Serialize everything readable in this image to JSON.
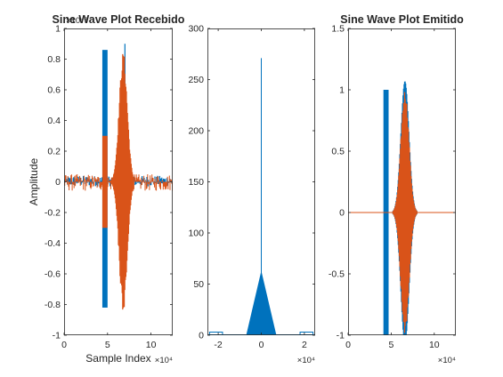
{
  "figure": {
    "colors": {
      "blue": "#0072BD",
      "orange": "#D95319",
      "axis": "#262626",
      "background": "#FFFFFF"
    }
  },
  "chart_data": [
    {
      "type": "line",
      "title": "Sine Wave Plot Recebido",
      "xlabel": "Sample Index",
      "ylabel": "Amplitude",
      "xlim": [
        0,
        125000
      ],
      "ylim": [
        -0.001,
        0.001
      ],
      "x_exponent_label": "×10⁴",
      "y_exponent_label": "×10⁻³",
      "xticks": [
        0,
        50000,
        100000
      ],
      "xtick_labels": [
        "0",
        "5",
        "10"
      ],
      "yticks": [
        -0.001,
        -0.0008,
        -0.0006,
        -0.0004,
        -0.0002,
        0,
        0.0002,
        0.0004,
        0.0006,
        0.0008,
        0.001
      ],
      "ytick_labels": [
        "-1",
        "-0.8",
        "-0.6",
        "-0.4",
        "-0.2",
        "0",
        "0.2",
        "0.4",
        "0.6",
        "0.8",
        "1"
      ],
      "grid": false,
      "series": [
        {
          "color": "#0072BD",
          "noise_band": [
            -3e-05,
            4e-05
          ],
          "burst_x": [
            44000,
            50000
          ],
          "burst_y": [
            -0.00082,
            0.00086
          ],
          "spike": [
            {
              "x": 70000,
              "y": 0.0009
            }
          ]
        },
        {
          "color": "#D95319",
          "noise_band": [
            -6e-05,
            5e-05
          ],
          "burst_x": [
            44000,
            50000
          ],
          "burst_y": [
            -0.0003,
            0.0003
          ],
          "chirp_x": [
            52000,
            80000
          ],
          "chirp_peak_x": 68000,
          "chirp_amplitude": 0.00085
        }
      ]
    },
    {
      "type": "bar",
      "title": "",
      "xlabel": "",
      "ylabel": "",
      "xlim": [
        -25000,
        25000
      ],
      "ylim": [
        0,
        300
      ],
      "x_exponent_label": "×10⁴",
      "xticks": [
        -20000,
        0,
        20000
      ],
      "xtick_labels": [
        "-2",
        "0",
        "2"
      ],
      "yticks": [
        0,
        50,
        100,
        150,
        200,
        250,
        300
      ],
      "ytick_labels": [
        "0",
        "50",
        "100",
        "150",
        "200",
        "250",
        "300"
      ],
      "grid": false,
      "color": "#0072BD",
      "triangle_base": [
        -7000,
        7000
      ],
      "triangle_peak": 63,
      "spike": {
        "x": 0,
        "y": 271
      },
      "side_steps": [
        {
          "x": [
            -24000,
            -18000
          ],
          "y": 3
        },
        {
          "x": [
            18000,
            24000
          ],
          "y": 3
        }
      ]
    },
    {
      "type": "line",
      "title": "Sine Wave Plot Emitido",
      "xlabel": "",
      "ylabel": "",
      "xlim": [
        0,
        125000
      ],
      "ylim": [
        -1,
        1.5
      ],
      "x_exponent_label": "×10⁴",
      "xticks": [
        0,
        50000,
        100000
      ],
      "xtick_labels": [
        "0",
        "5",
        "10"
      ],
      "yticks": [
        -1,
        -0.5,
        0,
        0.5,
        1,
        1.5
      ],
      "ytick_labels": [
        "-1",
        "-0.5",
        "0",
        "0.5",
        "1",
        "1.5"
      ],
      "grid": false,
      "series": [
        {
          "color": "#0072BD",
          "block_x": [
            41000,
            47000
          ],
          "block_y": [
            -1,
            1
          ],
          "chirp_peak": 1.07
        },
        {
          "color": "#D95319",
          "baseline_y": 0,
          "chirp_x": [
            52000,
            80000
          ],
          "chirp_peak_x": 66000,
          "chirp_amplitude": 1.0
        }
      ]
    }
  ]
}
